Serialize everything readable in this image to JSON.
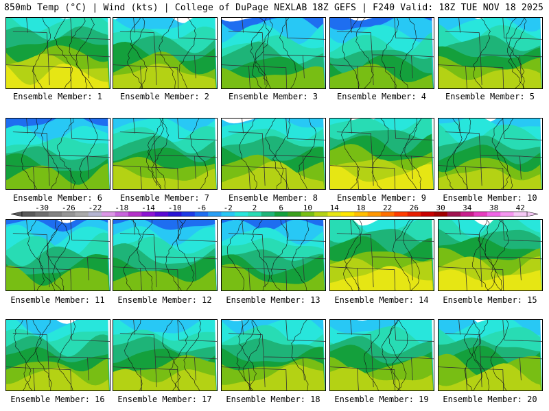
{
  "header": {
    "left": "850mb Temp (°C) | Wind (kts) | College of DuPage NEXLAB",
    "right": "18Z GEFS | F240 Valid: 18Z TUE NOV 18 2025"
  },
  "colorbar": {
    "tick_labels": [
      "-30",
      "-26",
      "-22",
      "-18",
      "-14",
      "-10",
      "-6",
      "-2",
      "2",
      "6",
      "10",
      "14",
      "18",
      "22",
      "26",
      "30",
      "34",
      "38",
      "42"
    ],
    "colors": [
      "#5a5a5a",
      "#6e6e6e",
      "#828282",
      "#969696",
      "#aaaaaa",
      "#b4b4d2",
      "#dc96e6",
      "#c864dc",
      "#b432c8",
      "#8c14d2",
      "#5a0ad2",
      "#2a14d2",
      "#1e3ce6",
      "#1e6ef0",
      "#289ff5",
      "#28c8f5",
      "#28e6dc",
      "#28dcb4",
      "#1eb478",
      "#14a03c",
      "#3ca01e",
      "#78be14",
      "#b4d214",
      "#e6e614",
      "#ffe600",
      "#ffbe00",
      "#ff9600",
      "#ff6e00",
      "#ff3c00",
      "#e61e00",
      "#c80000",
      "#a00000",
      "#a01450",
      "#c81e8c",
      "#e63cbe",
      "#f064e6",
      "#f596f0",
      "#f5c8f5"
    ]
  },
  "panels": [
    {
      "label": "Ensemble Member: 1",
      "warm": 0.7
    },
    {
      "label": "Ensemble Member: 2",
      "warm": 0.55
    },
    {
      "label": "Ensemble Member: 3",
      "warm": 0.35
    },
    {
      "label": "Ensemble Member: 4",
      "warm": 0.45
    },
    {
      "label": "Ensemble Member: 5",
      "warm": 0.55
    },
    {
      "label": "Ensemble Member: 6",
      "warm": 0.4
    },
    {
      "label": "Ensemble Member: 7",
      "warm": 0.65
    },
    {
      "label": "Ensemble Member: 8",
      "warm": 0.5
    },
    {
      "label": "Ensemble Member: 9",
      "warm": 0.7
    },
    {
      "label": "Ensemble Member: 10",
      "warm": 0.6
    },
    {
      "label": "Ensemble Member: 11",
      "warm": 0.35
    },
    {
      "label": "Ensemble Member: 12",
      "warm": 0.45
    },
    {
      "label": "Ensemble Member: 13",
      "warm": 0.4
    },
    {
      "label": "Ensemble Member: 14",
      "warm": 0.8
    },
    {
      "label": "Ensemble Member: 15",
      "warm": 0.7
    },
    {
      "label": "Ensemble Member: 16",
      "warm": 0.55
    },
    {
      "label": "Ensemble Member: 17",
      "warm": 0.55
    },
    {
      "label": "Ensemble Member: 18",
      "warm": 0.55
    },
    {
      "label": "Ensemble Member: 19",
      "warm": 0.55
    },
    {
      "label": "Ensemble Member: 20",
      "warm": 0.5
    }
  ]
}
